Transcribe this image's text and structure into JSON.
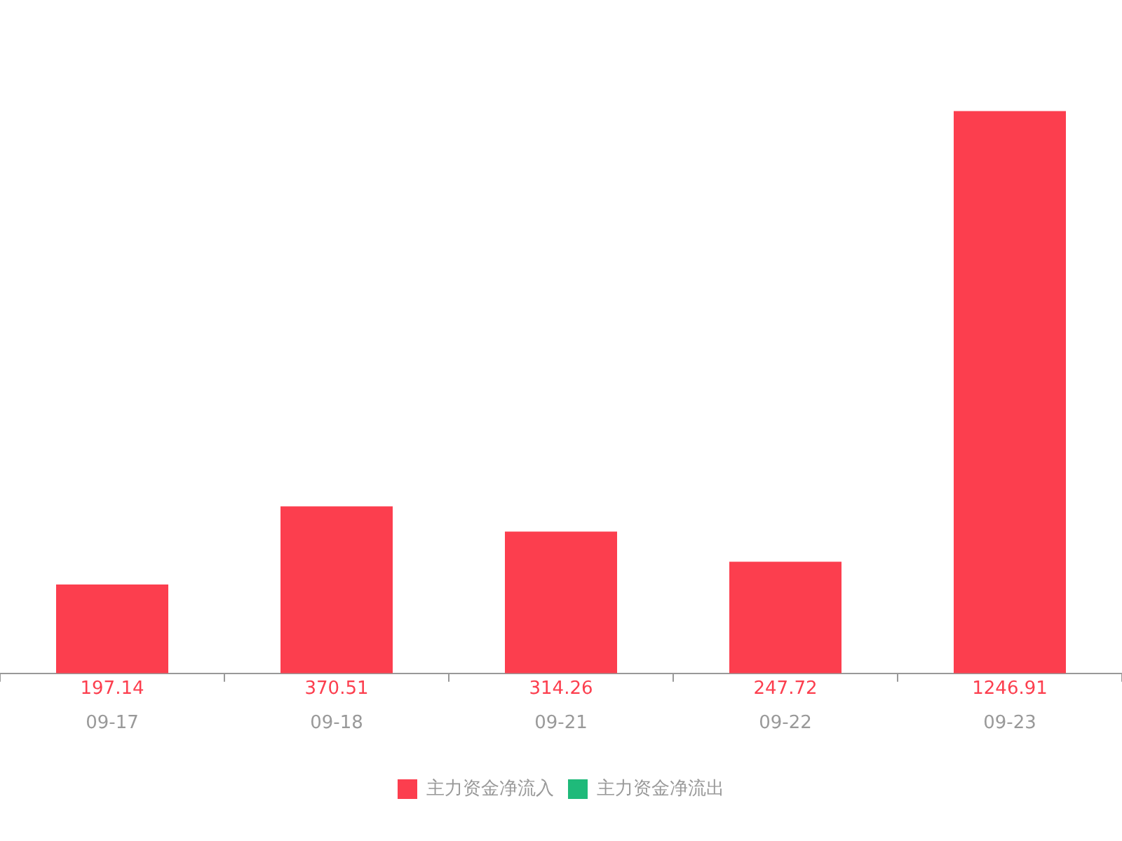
{
  "chart_data": {
    "type": "bar",
    "categories": [
      "09-17",
      "09-18",
      "09-21",
      "09-22",
      "09-23"
    ],
    "series": [
      {
        "name": "主力资金净流入",
        "color": "#fc3e4e",
        "values": [
          197.14,
          370.51,
          314.26,
          247.72,
          1246.91
        ]
      },
      {
        "name": "主力资金净流出",
        "color": "#1fba7a",
        "values": [
          null,
          null,
          null,
          null,
          null
        ]
      }
    ],
    "data_labels": true,
    "legend": "bottom",
    "tick_labels": "x",
    "grid": false
  }
}
